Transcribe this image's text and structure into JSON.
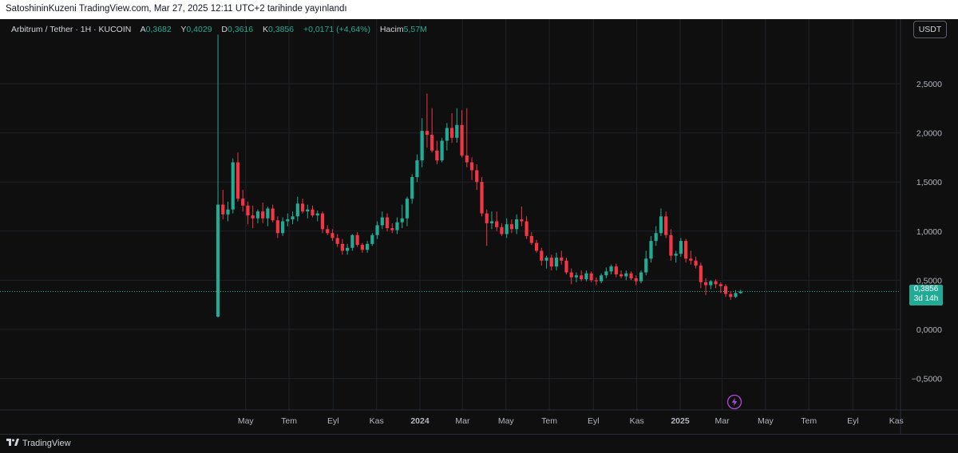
{
  "header": {
    "published_text": "SatoshininKuzeni TradingView.com, Mar 27, 2025 12:11 UTC+2 tarihinde yayınlandı"
  },
  "legend": {
    "symbol": "Arbitrum / Tether · 1H · KUCOIN",
    "open_label": "A",
    "open_value": "0,3682",
    "high_label": "Y",
    "high_value": "0,4029",
    "low_label": "D",
    "low_value": "0,3616",
    "close_label": "K",
    "close_value": "0,3856",
    "change": "+0,0171 (+4,64%)",
    "volume_label": "Hacim",
    "volume_value": "5,57M"
  },
  "toolbar": {
    "currency_label": "USDT"
  },
  "price_tag": {
    "price": "0,3856",
    "countdown": "3d 14h"
  },
  "footer": {
    "brand": "TradingView"
  },
  "icons": {
    "brand_logo": "tradingview-logo-icon",
    "events": "lightning-icon"
  },
  "colors": {
    "up": "#22ab94",
    "down": "#f23645",
    "background": "#0f0f0f",
    "grid": "#1e2128"
  },
  "chart_data": {
    "type": "candlestick",
    "y_axis": {
      "min": -0.72,
      "max": 3.0,
      "ticks": [
        2.5,
        2.0,
        1.5,
        1.0,
        0.5,
        0.0,
        -0.5
      ],
      "tick_labels": [
        "2,5000",
        "2,0000",
        "1,5000",
        "1,0000",
        "0,5000",
        "0,0000",
        "−0,5000"
      ]
    },
    "x_axis": {
      "ticks": [
        {
          "date": "2023-05-01",
          "label": "May",
          "bold": false
        },
        {
          "date": "2023-07-01",
          "label": "Tem",
          "bold": false
        },
        {
          "date": "2023-09-01",
          "label": "Eyl",
          "bold": false
        },
        {
          "date": "2023-11-01",
          "label": "Kas",
          "bold": false
        },
        {
          "date": "2024-01-01",
          "label": "2024",
          "bold": true
        },
        {
          "date": "2024-03-01",
          "label": "Mar",
          "bold": false
        },
        {
          "date": "2024-05-01",
          "label": "May",
          "bold": false
        },
        {
          "date": "2024-07-01",
          "label": "Tem",
          "bold": false
        },
        {
          "date": "2024-09-01",
          "label": "Eyl",
          "bold": false
        },
        {
          "date": "2024-11-01",
          "label": "Kas",
          "bold": false
        },
        {
          "date": "2025-01-01",
          "label": "2025",
          "bold": true
        },
        {
          "date": "2025-03-01",
          "label": "Mar",
          "bold": false
        },
        {
          "date": "2025-05-01",
          "label": "May",
          "bold": false
        },
        {
          "date": "2025-07-01",
          "label": "Tem",
          "bold": false
        },
        {
          "date": "2025-09-01",
          "label": "Eyl",
          "bold": false
        },
        {
          "date": "2025-11-01",
          "label": "Kas",
          "bold": false
        }
      ]
    },
    "current_price": 0.3856,
    "candles": [
      {
        "d": "2023-03-23",
        "o": 0.13,
        "h": 3.0,
        "l": 0.12,
        "c": 1.27
      },
      {
        "d": "2023-03-30",
        "o": 1.27,
        "h": 1.42,
        "l": 1.12,
        "c": 1.17
      },
      {
        "d": "2023-04-06",
        "o": 1.17,
        "h": 1.3,
        "l": 1.1,
        "c": 1.22
      },
      {
        "d": "2023-04-13",
        "o": 1.22,
        "h": 1.74,
        "l": 1.18,
        "c": 1.7
      },
      {
        "d": "2023-04-20",
        "o": 1.7,
        "h": 1.8,
        "l": 1.3,
        "c": 1.33
      },
      {
        "d": "2023-04-27",
        "o": 1.33,
        "h": 1.42,
        "l": 1.2,
        "c": 1.26
      },
      {
        "d": "2023-05-04",
        "o": 1.26,
        "h": 1.3,
        "l": 1.07,
        "c": 1.16
      },
      {
        "d": "2023-05-11",
        "o": 1.16,
        "h": 1.26,
        "l": 1.03,
        "c": 1.13
      },
      {
        "d": "2023-05-18",
        "o": 1.13,
        "h": 1.22,
        "l": 1.08,
        "c": 1.2
      },
      {
        "d": "2023-05-25",
        "o": 1.2,
        "h": 1.29,
        "l": 1.08,
        "c": 1.13
      },
      {
        "d": "2023-06-01",
        "o": 1.13,
        "h": 1.25,
        "l": 1.05,
        "c": 1.23
      },
      {
        "d": "2023-06-08",
        "o": 1.23,
        "h": 1.27,
        "l": 1.09,
        "c": 1.11
      },
      {
        "d": "2023-06-15",
        "o": 1.11,
        "h": 1.15,
        "l": 0.93,
        "c": 0.98
      },
      {
        "d": "2023-06-22",
        "o": 0.98,
        "h": 1.14,
        "l": 0.95,
        "c": 1.1
      },
      {
        "d": "2023-06-29",
        "o": 1.1,
        "h": 1.18,
        "l": 1.05,
        "c": 1.12
      },
      {
        "d": "2023-07-06",
        "o": 1.12,
        "h": 1.2,
        "l": 1.07,
        "c": 1.15
      },
      {
        "d": "2023-07-13",
        "o": 1.15,
        "h": 1.35,
        "l": 1.1,
        "c": 1.28
      },
      {
        "d": "2023-07-20",
        "o": 1.28,
        "h": 1.33,
        "l": 1.18,
        "c": 1.2
      },
      {
        "d": "2023-07-27",
        "o": 1.2,
        "h": 1.27,
        "l": 1.13,
        "c": 1.22
      },
      {
        "d": "2023-08-03",
        "o": 1.22,
        "h": 1.26,
        "l": 1.14,
        "c": 1.16
      },
      {
        "d": "2023-08-10",
        "o": 1.16,
        "h": 1.21,
        "l": 1.1,
        "c": 1.18
      },
      {
        "d": "2023-08-17",
        "o": 1.18,
        "h": 1.2,
        "l": 0.98,
        "c": 1.02
      },
      {
        "d": "2023-08-24",
        "o": 1.02,
        "h": 1.06,
        "l": 0.96,
        "c": 0.98
      },
      {
        "d": "2023-08-31",
        "o": 0.98,
        "h": 1.02,
        "l": 0.9,
        "c": 0.93
      },
      {
        "d": "2023-09-07",
        "o": 0.93,
        "h": 0.97,
        "l": 0.84,
        "c": 0.87
      },
      {
        "d": "2023-09-14",
        "o": 0.87,
        "h": 0.92,
        "l": 0.76,
        "c": 0.8
      },
      {
        "d": "2023-09-21",
        "o": 0.8,
        "h": 0.87,
        "l": 0.76,
        "c": 0.83
      },
      {
        "d": "2023-09-28",
        "o": 0.83,
        "h": 0.97,
        "l": 0.8,
        "c": 0.96
      },
      {
        "d": "2023-10-05",
        "o": 0.96,
        "h": 0.99,
        "l": 0.84,
        "c": 0.86
      },
      {
        "d": "2023-10-12",
        "o": 0.86,
        "h": 0.88,
        "l": 0.78,
        "c": 0.81
      },
      {
        "d": "2023-10-19",
        "o": 0.81,
        "h": 0.9,
        "l": 0.78,
        "c": 0.87
      },
      {
        "d": "2023-10-26",
        "o": 0.87,
        "h": 0.98,
        "l": 0.85,
        "c": 0.96
      },
      {
        "d": "2023-11-02",
        "o": 0.96,
        "h": 1.1,
        "l": 0.92,
        "c": 1.06
      },
      {
        "d": "2023-11-09",
        "o": 1.06,
        "h": 1.2,
        "l": 1.02,
        "c": 1.14
      },
      {
        "d": "2023-11-16",
        "o": 1.14,
        "h": 1.18,
        "l": 1.0,
        "c": 1.03
      },
      {
        "d": "2023-11-23",
        "o": 1.03,
        "h": 1.08,
        "l": 0.98,
        "c": 1.01
      },
      {
        "d": "2023-11-30",
        "o": 1.01,
        "h": 1.14,
        "l": 0.97,
        "c": 1.09
      },
      {
        "d": "2023-12-07",
        "o": 1.09,
        "h": 1.27,
        "l": 1.03,
        "c": 1.13
      },
      {
        "d": "2023-12-14",
        "o": 1.13,
        "h": 1.35,
        "l": 1.05,
        "c": 1.33
      },
      {
        "d": "2023-12-21",
        "o": 1.33,
        "h": 1.58,
        "l": 1.28,
        "c": 1.55
      },
      {
        "d": "2023-12-28",
        "o": 1.55,
        "h": 1.78,
        "l": 1.5,
        "c": 1.72
      },
      {
        "d": "2024-01-04",
        "o": 1.72,
        "h": 2.15,
        "l": 1.65,
        "c": 2.02
      },
      {
        "d": "2024-01-11",
        "o": 2.02,
        "h": 2.4,
        "l": 1.85,
        "c": 1.98
      },
      {
        "d": "2024-01-18",
        "o": 1.98,
        "h": 2.25,
        "l": 1.8,
        "c": 1.82
      },
      {
        "d": "2024-01-25",
        "o": 1.82,
        "h": 1.92,
        "l": 1.68,
        "c": 1.72
      },
      {
        "d": "2024-02-01",
        "o": 1.72,
        "h": 1.95,
        "l": 1.7,
        "c": 1.92
      },
      {
        "d": "2024-02-08",
        "o": 1.92,
        "h": 2.1,
        "l": 1.82,
        "c": 2.05
      },
      {
        "d": "2024-02-15",
        "o": 2.05,
        "h": 2.2,
        "l": 1.9,
        "c": 1.95
      },
      {
        "d": "2024-02-22",
        "o": 1.95,
        "h": 2.25,
        "l": 1.9,
        "c": 2.08
      },
      {
        "d": "2024-02-29",
        "o": 2.08,
        "h": 2.23,
        "l": 1.75,
        "c": 1.77
      },
      {
        "d": "2024-03-07",
        "o": 1.77,
        "h": 2.25,
        "l": 1.65,
        "c": 1.7
      },
      {
        "d": "2024-03-14",
        "o": 1.7,
        "h": 1.75,
        "l": 1.52,
        "c": 1.62
      },
      {
        "d": "2024-03-21",
        "o": 1.62,
        "h": 1.68,
        "l": 1.42,
        "c": 1.5
      },
      {
        "d": "2024-03-28",
        "o": 1.5,
        "h": 1.55,
        "l": 1.15,
        "c": 1.18
      },
      {
        "d": "2024-04-04",
        "o": 1.18,
        "h": 1.22,
        "l": 0.85,
        "c": 1.08
      },
      {
        "d": "2024-04-11",
        "o": 1.08,
        "h": 1.2,
        "l": 1.02,
        "c": 1.1
      },
      {
        "d": "2024-04-18",
        "o": 1.1,
        "h": 1.2,
        "l": 1.0,
        "c": 1.04
      },
      {
        "d": "2024-04-25",
        "o": 1.04,
        "h": 1.08,
        "l": 0.95,
        "c": 0.97
      },
      {
        "d": "2024-05-02",
        "o": 0.97,
        "h": 1.13,
        "l": 0.93,
        "c": 1.07
      },
      {
        "d": "2024-05-09",
        "o": 1.07,
        "h": 1.12,
        "l": 0.98,
        "c": 1.02
      },
      {
        "d": "2024-05-16",
        "o": 1.02,
        "h": 1.17,
        "l": 0.97,
        "c": 1.12
      },
      {
        "d": "2024-05-23",
        "o": 1.12,
        "h": 1.25,
        "l": 1.05,
        "c": 1.1
      },
      {
        "d": "2024-05-30",
        "o": 1.1,
        "h": 1.15,
        "l": 0.92,
        "c": 0.95
      },
      {
        "d": "2024-06-06",
        "o": 0.95,
        "h": 0.99,
        "l": 0.86,
        "c": 0.88
      },
      {
        "d": "2024-06-13",
        "o": 0.88,
        "h": 0.91,
        "l": 0.78,
        "c": 0.8
      },
      {
        "d": "2024-06-20",
        "o": 0.8,
        "h": 0.83,
        "l": 0.65,
        "c": 0.7
      },
      {
        "d": "2024-06-27",
        "o": 0.7,
        "h": 0.75,
        "l": 0.62,
        "c": 0.73
      },
      {
        "d": "2024-07-04",
        "o": 0.73,
        "h": 0.76,
        "l": 0.6,
        "c": 0.64
      },
      {
        "d": "2024-07-11",
        "o": 0.64,
        "h": 0.78,
        "l": 0.6,
        "c": 0.73
      },
      {
        "d": "2024-07-18",
        "o": 0.73,
        "h": 0.8,
        "l": 0.66,
        "c": 0.7
      },
      {
        "d": "2024-07-25",
        "o": 0.7,
        "h": 0.73,
        "l": 0.56,
        "c": 0.58
      },
      {
        "d": "2024-08-01",
        "o": 0.58,
        "h": 0.62,
        "l": 0.46,
        "c": 0.53
      },
      {
        "d": "2024-08-08",
        "o": 0.53,
        "h": 0.58,
        "l": 0.48,
        "c": 0.55
      },
      {
        "d": "2024-08-15",
        "o": 0.55,
        "h": 0.6,
        "l": 0.49,
        "c": 0.51
      },
      {
        "d": "2024-08-22",
        "o": 0.51,
        "h": 0.6,
        "l": 0.49,
        "c": 0.57
      },
      {
        "d": "2024-08-29",
        "o": 0.57,
        "h": 0.59,
        "l": 0.48,
        "c": 0.5
      },
      {
        "d": "2024-09-05",
        "o": 0.5,
        "h": 0.53,
        "l": 0.45,
        "c": 0.49
      },
      {
        "d": "2024-09-12",
        "o": 0.49,
        "h": 0.57,
        "l": 0.47,
        "c": 0.55
      },
      {
        "d": "2024-09-19",
        "o": 0.55,
        "h": 0.63,
        "l": 0.52,
        "c": 0.59
      },
      {
        "d": "2024-09-26",
        "o": 0.59,
        "h": 0.66,
        "l": 0.56,
        "c": 0.64
      },
      {
        "d": "2024-10-03",
        "o": 0.64,
        "h": 0.67,
        "l": 0.53,
        "c": 0.56
      },
      {
        "d": "2024-10-10",
        "o": 0.56,
        "h": 0.6,
        "l": 0.52,
        "c": 0.54
      },
      {
        "d": "2024-10-17",
        "o": 0.54,
        "h": 0.6,
        "l": 0.5,
        "c": 0.57
      },
      {
        "d": "2024-10-24",
        "o": 0.57,
        "h": 0.59,
        "l": 0.5,
        "c": 0.52
      },
      {
        "d": "2024-10-31",
        "o": 0.52,
        "h": 0.55,
        "l": 0.45,
        "c": 0.49
      },
      {
        "d": "2024-11-07",
        "o": 0.49,
        "h": 0.6,
        "l": 0.47,
        "c": 0.58
      },
      {
        "d": "2024-11-14",
        "o": 0.58,
        "h": 0.8,
        "l": 0.55,
        "c": 0.72
      },
      {
        "d": "2024-11-21",
        "o": 0.72,
        "h": 0.95,
        "l": 0.68,
        "c": 0.9
      },
      {
        "d": "2024-11-28",
        "o": 0.9,
        "h": 1.05,
        "l": 0.85,
        "c": 0.98
      },
      {
        "d": "2024-12-05",
        "o": 0.98,
        "h": 1.23,
        "l": 0.95,
        "c": 1.15
      },
      {
        "d": "2024-12-12",
        "o": 1.15,
        "h": 1.2,
        "l": 0.93,
        "c": 0.96
      },
      {
        "d": "2024-12-19",
        "o": 0.96,
        "h": 1.02,
        "l": 0.7,
        "c": 0.75
      },
      {
        "d": "2024-12-26",
        "o": 0.75,
        "h": 0.8,
        "l": 0.68,
        "c": 0.77
      },
      {
        "d": "2025-01-02",
        "o": 0.77,
        "h": 0.93,
        "l": 0.74,
        "c": 0.9
      },
      {
        "d": "2025-01-09",
        "o": 0.9,
        "h": 0.92,
        "l": 0.68,
        "c": 0.72
      },
      {
        "d": "2025-01-16",
        "o": 0.72,
        "h": 0.8,
        "l": 0.66,
        "c": 0.7
      },
      {
        "d": "2025-01-23",
        "o": 0.7,
        "h": 0.74,
        "l": 0.62,
        "c": 0.65
      },
      {
        "d": "2025-01-30",
        "o": 0.65,
        "h": 0.68,
        "l": 0.42,
        "c": 0.48
      },
      {
        "d": "2025-02-06",
        "o": 0.48,
        "h": 0.52,
        "l": 0.35,
        "c": 0.45
      },
      {
        "d": "2025-02-13",
        "o": 0.45,
        "h": 0.5,
        "l": 0.41,
        "c": 0.49
      },
      {
        "d": "2025-02-20",
        "o": 0.49,
        "h": 0.51,
        "l": 0.42,
        "c": 0.46
      },
      {
        "d": "2025-02-27",
        "o": 0.46,
        "h": 0.48,
        "l": 0.37,
        "c": 0.44
      },
      {
        "d": "2025-03-06",
        "o": 0.44,
        "h": 0.46,
        "l": 0.33,
        "c": 0.36
      },
      {
        "d": "2025-03-13",
        "o": 0.36,
        "h": 0.38,
        "l": 0.3,
        "c": 0.33
      },
      {
        "d": "2025-03-20",
        "o": 0.33,
        "h": 0.4,
        "l": 0.32,
        "c": 0.37
      },
      {
        "d": "2025-03-27",
        "o": 0.3682,
        "h": 0.4029,
        "l": 0.3616,
        "c": 0.3856
      }
    ]
  }
}
